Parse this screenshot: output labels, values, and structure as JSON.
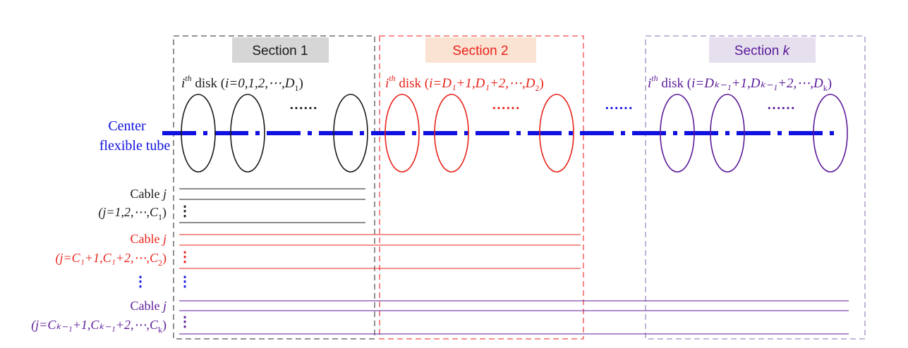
{
  "colors": {
    "black": "#1a1a1a",
    "red": "#e8231b",
    "purple": "#5b1a99",
    "blue": "#1010e0",
    "gray": "#555555",
    "section1_box": "#555555",
    "section2_box": "#ef4a4a",
    "sectionk_box": "#a08cc0",
    "section1_fill": "#d6d6d6",
    "section2_fill": "#fbe3d3",
    "sectionk_fill": "#e6e0ee"
  },
  "tube": {
    "label_line1": "Center",
    "label_line2": "flexible tube"
  },
  "sections": [
    {
      "title": "Section 1",
      "disk_label": {
        "sup": "th",
        "pre": "i",
        "mid": " disk (",
        "body": "i=0,1,2,⋯,D",
        "sub": "1",
        "end": ")"
      }
    },
    {
      "title": "Section 2",
      "disk_label": {
        "sup": "th",
        "pre": "i",
        "mid": " disk (",
        "body": "i=D₁+1,D₁+2,⋯,D",
        "sub": "2",
        "end": ")"
      }
    },
    {
      "title": "Section ",
      "title_italic": "k",
      "disk_label": {
        "sup": "th",
        "pre": "i",
        "mid": " disk (",
        "body": "i=Dₖ₋₁+1,Dₖ₋₁+2,⋯,D",
        "sub": "k",
        "end": ")"
      }
    }
  ],
  "ellipsis": "······",
  "vdots": "⋮",
  "cables": [
    {
      "label_line1": "Cable ",
      "label_italic": "j",
      "label_line2": "(j=1,2,⋯,C",
      "sub": "1",
      "end": ")"
    },
    {
      "label_line1": "Cable ",
      "label_italic": "j",
      "label_line2": "(j=C₁+1,C₁+2,⋯,C",
      "sub": "2",
      "end": ")"
    },
    {
      "label_line1": "Cable ",
      "label_italic": "j",
      "label_line2": "(j=Cₖ₋₁+1,Cₖ₋₁+2,⋯,C",
      "sub": "k",
      "end": ")"
    }
  ]
}
